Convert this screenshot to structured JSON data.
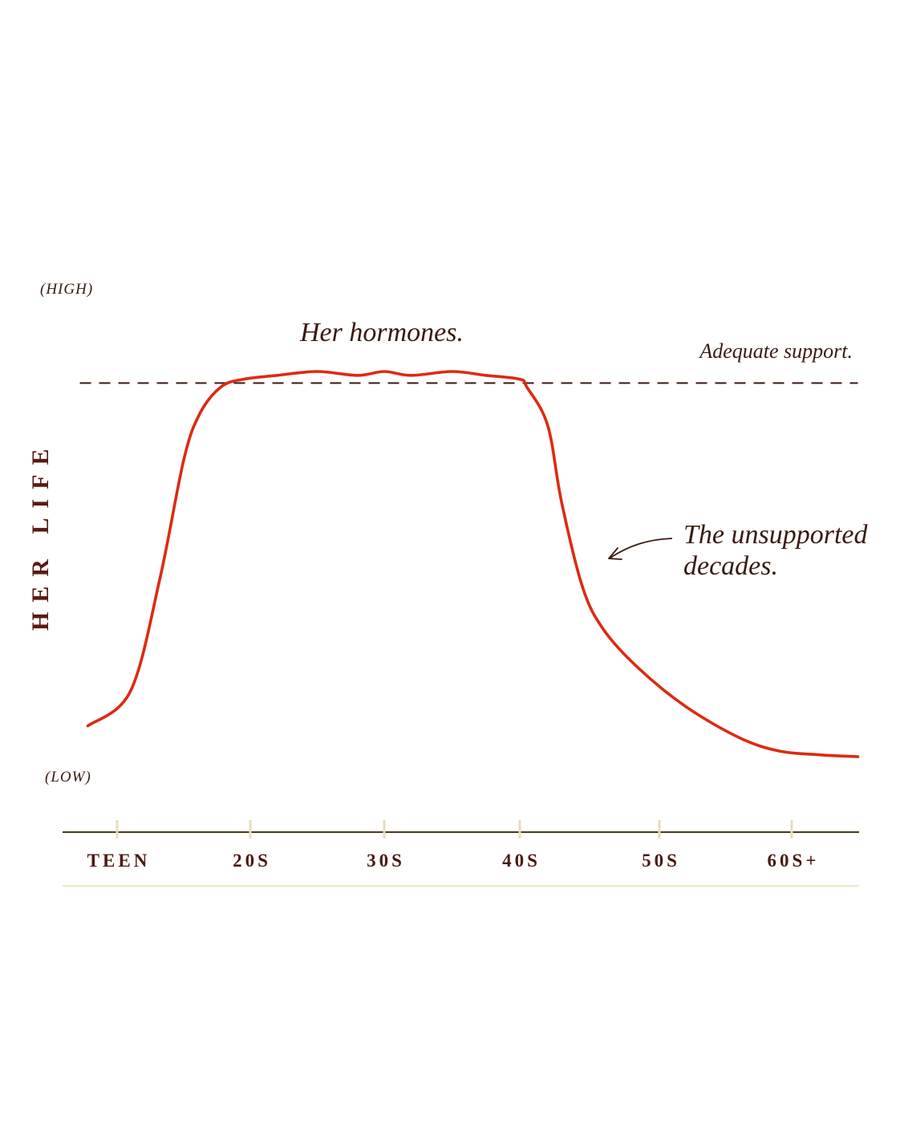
{
  "chart_data": {
    "type": "line",
    "ylabel": "HER LIFE",
    "y_high_label": "(HIGH)",
    "y_low_label": "(LOW)",
    "categories": [
      "TEEN",
      "20S",
      "30S",
      "40S",
      "50S",
      "60S+"
    ],
    "ylim": [
      0,
      100
    ],
    "grid": false,
    "series": [
      {
        "name": "Her hormones.",
        "color": "#dd2a12",
        "x": [
          -0.22,
          0.1,
          0.32,
          0.5,
          0.62,
          0.78,
          0.95,
          1.2,
          1.5,
          1.8,
          2.0,
          2.2,
          2.5,
          2.75,
          3.0,
          3.05,
          3.2,
          3.3,
          3.45,
          3.6,
          3.85,
          4.2,
          4.6,
          4.9,
          5.2,
          5.5
        ],
        "values": [
          8,
          17,
          46,
          77,
          89,
          96,
          98,
          99,
          100,
          99,
          100,
          99,
          100,
          99,
          98,
          96,
          86,
          66,
          44,
          33,
          23,
          13,
          5,
          1.5,
          0.5,
          0
        ]
      },
      {
        "name": "Adequate support.",
        "style": "dashed",
        "color": "#3a1a10",
        "x": [
          -0.28,
          5.5
        ],
        "values": [
          97,
          97
        ]
      }
    ],
    "annotations": [
      {
        "text": "The unsupported",
        "text2": "decades.",
        "arrow": true
      }
    ]
  },
  "labels": {
    "hormones": "Her hormones.",
    "support": "Adequate support.",
    "unsupported_line1": "The unsupported",
    "unsupported_line2": "decades."
  },
  "colors": {
    "curve": "#dd2a12",
    "text": "#3a1a10",
    "axis": "#4a3a1a",
    "tick": "#e6ddb8",
    "baseline": "#ece8c8"
  }
}
